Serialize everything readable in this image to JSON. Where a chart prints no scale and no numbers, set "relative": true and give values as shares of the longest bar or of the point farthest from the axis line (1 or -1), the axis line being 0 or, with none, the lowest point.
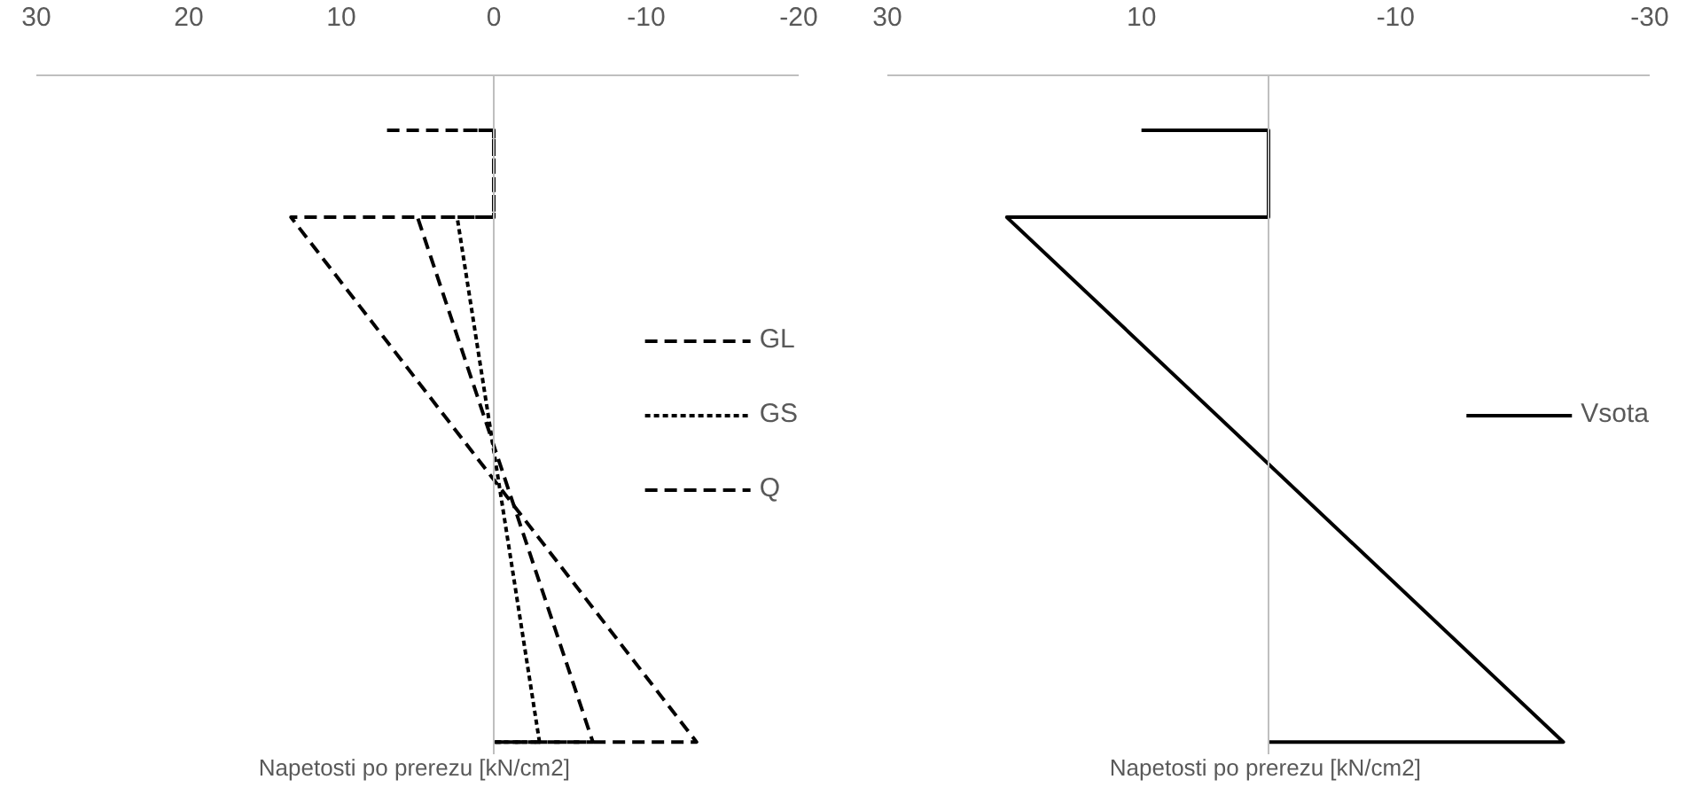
{
  "chart_data": [
    {
      "type": "line",
      "relative": true,
      "xlabel": "Napetosti po prerezu  [kN/cm2]",
      "xlim": [
        30,
        -20
      ],
      "xticks": [
        30,
        20,
        10,
        0,
        -10,
        -20
      ],
      "tick_labels": "x",
      "legend": "right",
      "series": [
        {
          "name": "GL",
          "color": "#000000",
          "line_style": "dashed",
          "x": [
            7,
            0,
            0,
            13.3,
            -13.3,
            0
          ],
          "values": [
            1,
            1,
            0.858,
            0.858,
            0,
            0
          ]
        },
        {
          "name": "GS",
          "color": "#000000",
          "line_style": "dotted",
          "x": [
            1,
            0,
            0,
            2.4,
            -3,
            0
          ],
          "values": [
            1,
            1,
            0.858,
            0.858,
            0,
            0
          ]
        },
        {
          "name": "Q",
          "color": "#000000",
          "line_style": "dashed",
          "x": [
            2,
            0,
            0,
            5,
            -6.5,
            0
          ],
          "values": [
            1,
            1,
            0.858,
            0.858,
            0,
            0
          ]
        }
      ]
    },
    {
      "type": "line",
      "relative": true,
      "xlabel": "Napetosti po prerezu  [kN/cm2]",
      "xlim": [
        30,
        -30
      ],
      "xticks": [
        30,
        10,
        -10,
        -30
      ],
      "tick_labels": "x",
      "legend": "right",
      "series": [
        {
          "name": "Vsota",
          "color": "#000000",
          "line_style": "solid",
          "x": [
            10,
            0,
            0,
            20.6,
            -23.2,
            0
          ],
          "values": [
            1,
            1,
            0.858,
            0.858,
            0,
            0
          ]
        }
      ]
    }
  ]
}
